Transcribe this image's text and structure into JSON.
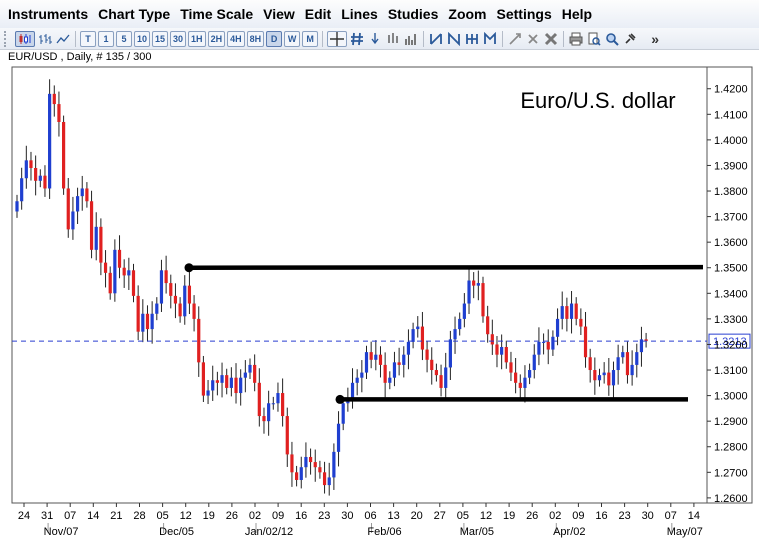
{
  "menu": {
    "items": [
      "Instruments",
      "Chart Type",
      "Time Scale",
      "View",
      "Edit",
      "Lines",
      "Studies",
      "Zoom",
      "Settings",
      "Help"
    ]
  },
  "toolbar": {
    "timeframes": [
      "T",
      "1",
      "5",
      "10",
      "15",
      "30",
      "1H",
      "2H",
      "4H",
      "8H",
      "D",
      "W",
      "M"
    ],
    "active_timeframe": "D",
    "more_label": "»"
  },
  "chart_info": "EUR/USD , Daily, # 135 / 300",
  "chart_data": {
    "type": "candlestick",
    "title": "Euro/U.S. dollar",
    "ylim": [
      1.258,
      1.4285
    ],
    "ytick_labels": [
      "1.4200",
      "1.4100",
      "1.4000",
      "1.3900",
      "1.3800",
      "1.3700",
      "1.3600",
      "1.3500",
      "1.3400",
      "1.3300",
      "1.3200",
      "1.3100",
      "1.3000",
      "1.2900",
      "1.2800",
      "1.2700",
      "1.2600"
    ],
    "xtick_labels": [
      "24",
      "31",
      "07",
      "14",
      "21",
      "28",
      "05",
      "12",
      "19",
      "26",
      "02",
      "09",
      "16",
      "23",
      "30",
      "06",
      "13",
      "20",
      "27",
      "05",
      "12",
      "19",
      "26",
      "02",
      "09",
      "16",
      "23",
      "30",
      "07",
      "14"
    ],
    "month_labels": [
      "Nov/07",
      "Dec/05",
      "Jan/02/12",
      "Feb/06",
      "Mar/05",
      "Apr/02",
      "May/07"
    ],
    "last_price": 1.3213,
    "last_price_label": "1.3213",
    "up_color": "#1f3fd0",
    "down_color": "#e02020",
    "resistance_level": 1.35,
    "support_level": 1.2985,
    "closes": [
      1.376,
      1.385,
      1.392,
      1.389,
      1.384,
      1.386,
      1.381,
      1.418,
      1.414,
      1.407,
      1.381,
      1.365,
      1.372,
      1.378,
      1.381,
      1.376,
      1.357,
      1.366,
      1.352,
      1.348,
      1.34,
      1.357,
      1.35,
      1.347,
      1.349,
      1.339,
      1.325,
      1.332,
      1.326,
      1.332,
      1.336,
      1.349,
      1.344,
      1.339,
      1.336,
      1.331,
      1.343,
      1.336,
      1.33,
      1.313,
      1.3,
      1.302,
      1.306,
      1.305,
      1.308,
      1.303,
      1.307,
      1.301,
      1.307,
      1.309,
      1.312,
      1.305,
      1.292,
      1.29,
      1.297,
      1.297,
      1.301,
      1.292,
      1.277,
      1.27,
      1.267,
      1.272,
      1.276,
      1.274,
      1.272,
      1.27,
      1.265,
      1.268,
      1.278,
      1.289,
      1.297,
      1.299,
      1.305,
      1.307,
      1.309,
      1.317,
      1.314,
      1.316,
      1.312,
      1.305,
      1.307,
      1.313,
      1.312,
      1.316,
      1.321,
      1.326,
      1.327,
      1.318,
      1.314,
      1.31,
      1.308,
      1.303,
      1.311,
      1.322,
      1.326,
      1.33,
      1.336,
      1.345,
      1.343,
      1.344,
      1.331,
      1.324,
      1.32,
      1.316,
      1.319,
      1.313,
      1.309,
      1.305,
      1.303,
      1.307,
      1.31,
      1.316,
      1.321,
      1.321,
      1.318,
      1.323,
      1.33,
      1.335,
      1.33,
      1.336,
      1.33,
      1.327,
      1.315,
      1.31,
      1.306,
      1.308,
      1.309,
      1.304,
      1.31,
      1.315,
      1.317,
      1.308,
      1.312,
      1.317,
      1.322,
      1.3213
    ]
  }
}
